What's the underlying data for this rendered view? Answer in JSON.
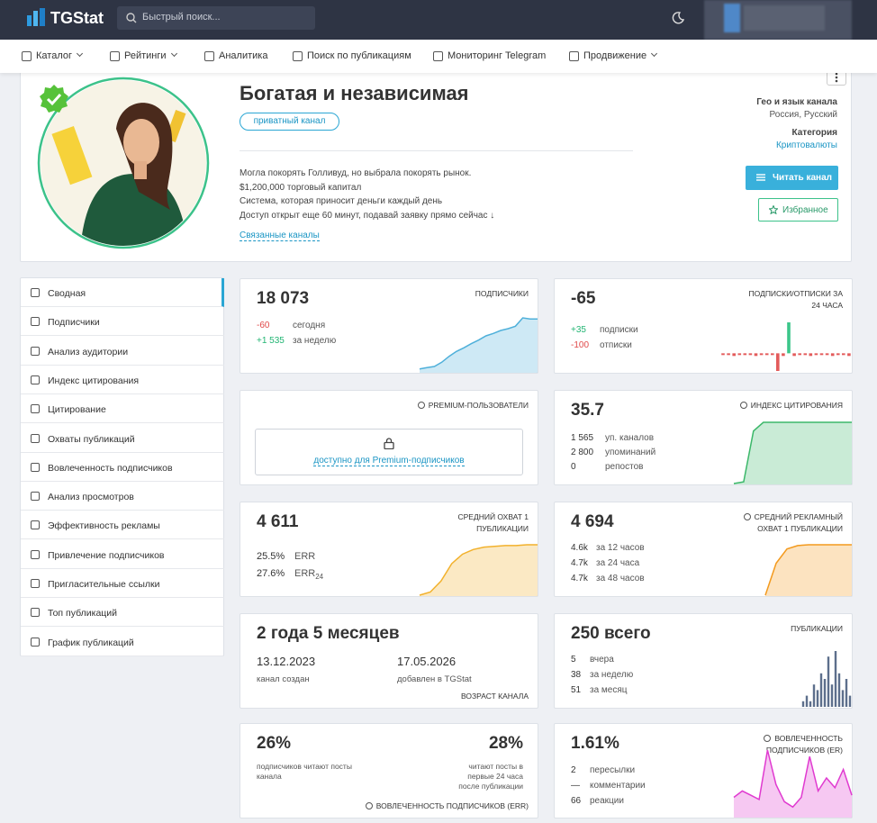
{
  "header": {
    "logo": "TGStat",
    "search_placeholder": "Быстрый поиск..."
  },
  "nav": [
    "Каталог",
    "Рейтинги",
    "Аналитика",
    "Поиск по публикациям",
    "Мониторинг Telegram",
    "Продвижение"
  ],
  "channel": {
    "title": "Богатая и независимая",
    "badge": "приватный канал",
    "description": [
      "Могла покорять Голливуд, но выбрала покорять рынок.",
      "$1,200,000 торговый капитал",
      "Система, которая приносит деньги каждый день",
      "Доступ открыт еще 60 минут, подавай заявку прямо сейчас ↓"
    ],
    "related": "Связанные каналы",
    "geo_label": "Гео и язык канала",
    "geo": "Россия, Русский",
    "category_label": "Категория",
    "category": "Криптовалюты",
    "read_button": "Читать канал",
    "favorite_button": "Избранное"
  },
  "sidebar": [
    "Сводная",
    "Подписчики",
    "Анализ аудитории",
    "Индекс цитирования",
    "Цитирование",
    "Охваты публикаций",
    "Вовлеченность подписчиков",
    "Анализ просмотров",
    "Эффективность рекламы",
    "Привлечение подписчиков",
    "Пригласительные ссылки",
    "Топ публикаций",
    "График публикаций"
  ],
  "cards": [
    {
      "value": "18 073",
      "label": "ПОДПИСЧИКИ",
      "stats": [
        {
          "value": "-60",
          "label": "сегодня"
        },
        {
          "value": "+1 535",
          "label": "за неделю"
        }
      ],
      "chart": {
        "type": "area",
        "color": "#4fb0da",
        "values": [
          5,
          7,
          9,
          16,
          26,
          34,
          40,
          47,
          53,
          60,
          64,
          69,
          72,
          76,
          90,
          88,
          88
        ]
      }
    },
    {
      "value": "-65",
      "label": "ПОДПИСКИ/ОТПИСКИ ЗА 24 ЧАСА",
      "stats": [
        {
          "value": "+35",
          "label": "подписки"
        },
        {
          "value": "-100",
          "label": "отписки"
        }
      ],
      "chart": {
        "type": "bar",
        "color": "#3cc68a",
        "negative_color": "#e35b5b",
        "values": [
          -2,
          -2,
          -3,
          -2,
          -2,
          -2,
          -3,
          -2,
          -2,
          -2,
          -20,
          -3,
          35,
          -3,
          -2,
          -2,
          -3,
          -2,
          -2,
          -2,
          -3,
          -2,
          -2,
          -3
        ]
      }
    },
    {
      "label": "PREMIUM-ПОЛЬЗОВАТЕЛИ",
      "locked": "доступно для Premium-подписчиков"
    },
    {
      "value": "35.7",
      "label": "ИНДЕКС ЦИТИРОВАНИЯ",
      "stats": [
        {
          "value": "1 565",
          "label": "уп. каналов"
        },
        {
          "value": "2 800",
          "label": "упоминаний"
        },
        {
          "value": "0",
          "label": "репостов"
        }
      ],
      "chart": {
        "type": "area",
        "color": "#3cb86a",
        "values": [
          0,
          2,
          60,
          70,
          70,
          70,
          70,
          70,
          70,
          70,
          70,
          70,
          70
        ]
      }
    },
    {
      "value": "4 611",
      "label": "СРЕДНИЙ ОХВАТ 1 ПУБЛИКАЦИИ",
      "stats": [
        {
          "value": "25.5%",
          "label": "ERR"
        },
        {
          "value": "27.6%",
          "label": "ERR",
          "sub": "24"
        }
      ],
      "chart": {
        "type": "area",
        "color": "#f2b12c",
        "values": [
          0,
          4,
          18,
          40,
          52,
          58,
          61,
          62,
          63,
          63,
          64,
          64
        ]
      }
    },
    {
      "value": "4 694",
      "label": "СРЕДНИЙ РЕКЛАМНЫЙ ОХВАТ 1 ПУБЛИКАЦИИ",
      "stats": [
        {
          "value": "4.6k",
          "label": "за 12 часов"
        },
        {
          "value": "4.7k",
          "label": "за 24 часа"
        },
        {
          "value": "4.7k",
          "label": "за 48 часов"
        }
      ],
      "chart": {
        "type": "area",
        "color": "#f39a1e",
        "values": [
          0,
          38,
          55,
          59,
          60,
          60,
          60,
          60,
          60
        ]
      }
    },
    {
      "value": "2 года 5 месяцев",
      "created": {
        "value": "13.12.2023",
        "label": "канал создан"
      },
      "added": {
        "value": "17.05.2026",
        "label": "добавлен в TGStat"
      },
      "label": "ВОЗРАСТ КАНАЛА"
    },
    {
      "value": "250 всего",
      "label": "ПУБЛИКАЦИИ",
      "stats": [
        {
          "value": "5",
          "label": "вчера"
        },
        {
          "value": "38",
          "label": "за неделю"
        },
        {
          "value": "51",
          "label": "за месяц"
        }
      ],
      "chart": {
        "type": "bar",
        "color": "#5d6f8c",
        "values": [
          1,
          2,
          1,
          4,
          3,
          6,
          5,
          9,
          4,
          10,
          6,
          3,
          5,
          2
        ]
      }
    },
    {
      "value": "26%",
      "value_caption": "подписчиков читают посты канала",
      "value2": "28%",
      "value2_caption": "читают посты в первые 24 часа после публикации",
      "label": "ВОВЛЕЧЕННОСТЬ ПОДПИСЧИКОВ (ERR)"
    },
    {
      "value": "1.61%",
      "label": "ВОВЛЕЧЕННОСТЬ ПОДПИСЧИКОВ (ER)",
      "stats": [
        {
          "value": "2",
          "label": "пересылки"
        },
        {
          "value": "—",
          "label": "комментарии"
        },
        {
          "value": "66",
          "label": "реакции"
        }
      ],
      "chart": {
        "type": "area",
        "color": "#e03ad0",
        "values": [
          18,
          24,
          20,
          16,
          62,
          30,
          14,
          9,
          18,
          56,
          24,
          36,
          27,
          44,
          20
        ]
      }
    }
  ]
}
